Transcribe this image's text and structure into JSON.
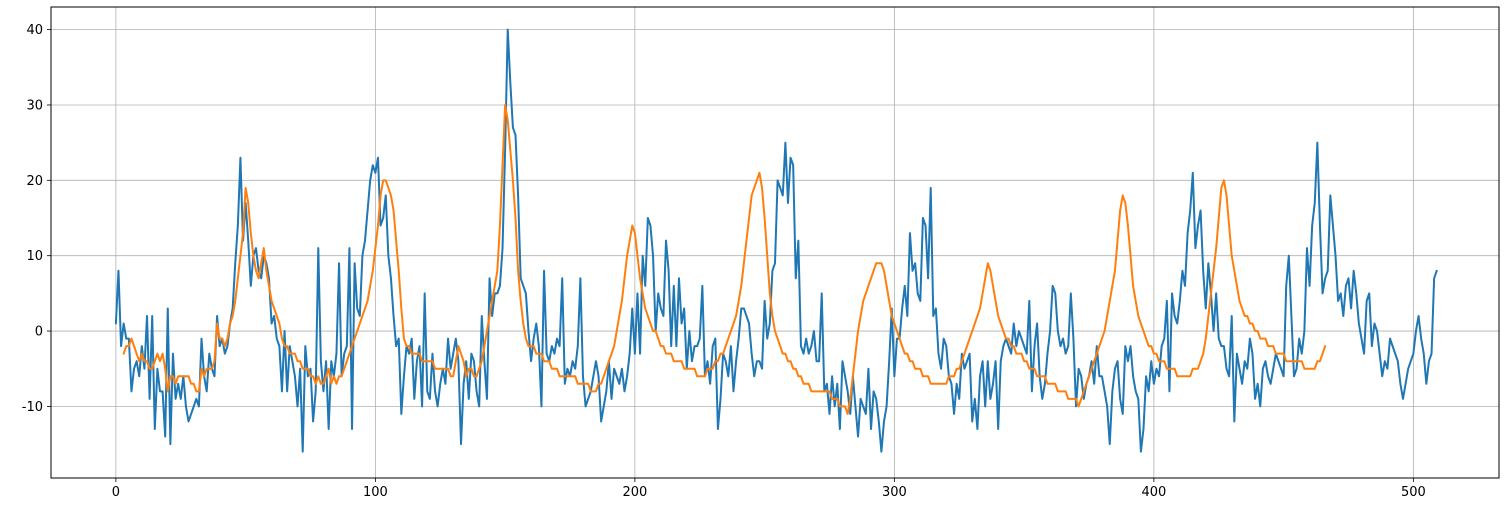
{
  "chart_data": {
    "type": "line",
    "title": "",
    "xlabel": "",
    "ylabel": "",
    "xlim": [
      -25,
      533
    ],
    "ylim": [
      -19.5,
      43
    ],
    "grid": true,
    "xticks": [
      0,
      100,
      200,
      300,
      400,
      500
    ],
    "yticks": [
      -10,
      0,
      10,
      20,
      30,
      40
    ],
    "colors": {
      "series_1": "#1f77b4",
      "series_2": "#ff7f0e"
    },
    "series": [
      {
        "color": "#1f77b4",
        "x_start": 0,
        "values": [
          1,
          8,
          -2,
          1,
          -1,
          -1,
          -8,
          -5,
          -4,
          -6,
          -2,
          -5,
          2,
          -9,
          2,
          -13,
          -5,
          -8,
          -8,
          -14,
          3,
          -15,
          -3,
          -9,
          -7,
          -9,
          -6,
          -10,
          -12,
          -11,
          -10,
          -9,
          -10,
          -1,
          -6,
          -8,
          -3,
          -5,
          -6,
          2,
          -2,
          -1,
          -3,
          -2,
          1,
          3,
          9,
          14,
          23,
          12,
          17,
          12,
          6,
          10,
          11,
          8,
          7,
          10,
          9,
          7,
          1,
          2,
          -1,
          -2,
          -8,
          0,
          -8,
          -2,
          -4,
          -6,
          -10,
          -5,
          -16,
          -2,
          -6,
          -5,
          -12,
          -8,
          11,
          -4,
          -8,
          -4,
          -13,
          -4,
          -6,
          -3,
          9,
          -6,
          -3,
          -2,
          11,
          -13,
          9,
          3,
          2,
          10,
          12,
          16,
          20,
          22,
          21,
          23,
          14,
          15,
          18,
          10,
          7,
          2,
          -2,
          -1,
          -11,
          -6,
          -2,
          -3,
          -1,
          -9,
          -4,
          -2,
          -10,
          5,
          -8,
          -9,
          -3,
          -8,
          -10,
          -7,
          -5,
          -7,
          -1,
          -5,
          -3,
          -1,
          -4,
          -15,
          -7,
          -4,
          -9,
          -3,
          -4,
          -8,
          -10,
          2,
          -4,
          -9,
          7,
          2,
          5,
          5,
          6,
          11,
          24,
          40,
          33,
          27,
          26,
          18,
          7,
          6,
          5,
          0,
          -4,
          -1,
          1,
          -2,
          -10,
          8,
          -3,
          -4,
          -2,
          -3,
          -1,
          -2,
          7,
          -7,
          -5,
          -6,
          -4,
          -5,
          -2,
          7,
          -6,
          -10,
          -9,
          -8,
          -6,
          -4,
          -6,
          -12,
          -10,
          -8,
          -4,
          -9,
          -5,
          -6,
          -7,
          -5,
          -8,
          -6,
          -3,
          3,
          -3,
          5,
          -3,
          10,
          6,
          15,
          14,
          10,
          0,
          5,
          3,
          2,
          12,
          8,
          -2,
          6,
          -2,
          7,
          1,
          3,
          -5,
          0,
          -4,
          -2,
          -2,
          -1,
          6,
          -6,
          -4,
          -7,
          -2,
          -1,
          -13,
          -9,
          -3,
          -4,
          -6,
          -2,
          -8,
          -4,
          -1,
          3,
          3,
          2,
          1,
          -3,
          -6,
          -4,
          -4,
          -5,
          4,
          -1,
          1,
          8,
          9,
          20,
          19,
          18,
          25,
          17,
          23,
          22,
          7,
          12,
          -2,
          -3,
          -1,
          -3,
          -2,
          0,
          -4,
          -4,
          5,
          -8,
          -7,
          -11,
          -6,
          -10,
          -7,
          -13,
          -4,
          -6,
          -8,
          -11,
          -6,
          -10,
          -14,
          -9,
          -10,
          -11,
          -5,
          -13,
          -8,
          -9,
          -12,
          -16,
          -12,
          -10,
          -4,
          3,
          -6,
          -1,
          -1,
          3,
          6,
          2,
          13,
          8,
          9,
          5,
          4,
          15,
          14,
          7,
          19,
          2,
          3,
          -3,
          -5,
          -1,
          -2,
          -6,
          -7,
          -11,
          -7,
          -9,
          -3,
          -5,
          -4,
          -3,
          -12,
          -9,
          -13,
          -6,
          -4,
          -10,
          -4,
          -9,
          -7,
          -4,
          -13,
          -4,
          -2,
          -1,
          -2,
          -3,
          1,
          -2,
          0,
          -1,
          -2,
          -3,
          4,
          -8,
          -2,
          1,
          -6,
          -9,
          -7,
          -3,
          0,
          6,
          5,
          0,
          -2,
          -1,
          -3,
          -2,
          5,
          -1,
          -10,
          -5,
          -6,
          -9,
          -7,
          -6,
          -4,
          -7,
          -2,
          -6,
          -6,
          -8,
          -10,
          -15,
          -8,
          -5,
          -4,
          -9,
          -11,
          -2,
          -4,
          -2,
          -6,
          -8,
          -9,
          -16,
          -13,
          -6,
          -8,
          -4,
          -7,
          -5,
          -6,
          -2,
          -1,
          4,
          -8,
          5,
          2,
          1,
          4,
          8,
          6,
          13,
          16,
          21,
          11,
          14,
          16,
          8,
          3,
          9,
          5,
          0,
          5,
          -1,
          -2,
          -2,
          -5,
          -6,
          2,
          -12,
          -3,
          -5,
          -7,
          -4,
          -5,
          -1,
          -3,
          -9,
          -7,
          -10,
          -5,
          -4,
          -6,
          -7,
          -5,
          -3,
          -4,
          -5,
          -6,
          6,
          10,
          2,
          -6,
          -5,
          -1,
          -3,
          0,
          11,
          6,
          14,
          17,
          25,
          14,
          5,
          7,
          8,
          18,
          14,
          10,
          4,
          5,
          2,
          6,
          7,
          3,
          8,
          5,
          1,
          -1,
          -3,
          4,
          5,
          -2,
          1,
          0,
          -3,
          -6,
          -4,
          -5,
          -1,
          -2,
          -3,
          -4,
          -7,
          -9,
          -7,
          -5,
          -4,
          -3,
          0,
          2,
          -1,
          -3,
          -7,
          -4,
          -3,
          7,
          8
        ]
      },
      {
        "color": "#ff7f0e",
        "x_start": 3,
        "values": [
          -3,
          -2,
          -2,
          -1,
          -2,
          -3,
          -4,
          -3,
          -4,
          -4,
          -5,
          -5,
          -4,
          -3,
          -4,
          -3,
          -5,
          -8,
          -6,
          -6,
          -7,
          -6,
          -6,
          -6,
          -6,
          -6,
          -7,
          -7,
          -8,
          -8,
          -5,
          -6,
          -5,
          -5,
          -5,
          -4,
          1,
          -1,
          -1,
          -2,
          -1,
          1,
          2,
          4,
          7,
          10,
          13,
          19,
          17,
          13,
          10,
          8,
          7,
          9,
          11,
          8,
          6,
          4,
          3,
          2,
          1,
          -1,
          -2,
          -2,
          -3,
          -3,
          -3,
          -4,
          -4,
          -5,
          -5,
          -5,
          -6,
          -6,
          -7,
          -6,
          -7,
          -7,
          -6,
          -5,
          -7,
          -6,
          -7,
          -6,
          -6,
          -5,
          -4,
          -3,
          -2,
          -1,
          0,
          1,
          2,
          3,
          4,
          6,
          8,
          11,
          14,
          18,
          20,
          20,
          19,
          18,
          16,
          12,
          8,
          3,
          -1,
          -2,
          -2,
          -3,
          -3,
          -3,
          -3,
          -4,
          -4,
          -4,
          -4,
          -4,
          -5,
          -5,
          -5,
          -5,
          -5,
          -5,
          -6,
          -6,
          -4,
          -2,
          -3,
          -4,
          -6,
          -5,
          -5,
          -6,
          -6,
          -5,
          -4,
          -2,
          0,
          2,
          4,
          6,
          8,
          14,
          22,
          30,
          28,
          24,
          20,
          15,
          8,
          4,
          1,
          -1,
          -2,
          -2,
          -2,
          -3,
          -3,
          -3,
          -4,
          -4,
          -4,
          -5,
          -5,
          -5,
          -6,
          -6,
          -6,
          -6,
          -6,
          -6,
          -6,
          -7,
          -7,
          -7,
          -7,
          -7,
          -8,
          -8,
          -8,
          -7,
          -7,
          -6,
          -5,
          -4,
          -3,
          -2,
          0,
          2,
          4,
          7,
          10,
          12,
          14,
          13,
          10,
          7,
          5,
          3,
          2,
          1,
          0,
          0,
          -1,
          -2,
          -2,
          -3,
          -3,
          -3,
          -4,
          -4,
          -4,
          -4,
          -5,
          -5,
          -5,
          -5,
          -5,
          -6,
          -6,
          -6,
          -6,
          -5,
          -5,
          -5,
          -4,
          -4,
          -3,
          -3,
          -2,
          -1,
          0,
          1,
          2,
          4,
          6,
          9,
          12,
          15,
          18,
          19,
          20,
          21,
          19,
          15,
          10,
          5,
          2,
          0,
          -1,
          -2,
          -3,
          -3,
          -4,
          -4,
          -5,
          -5,
          -6,
          -6,
          -7,
          -7,
          -7,
          -8,
          -8,
          -8,
          -8,
          -8,
          -8,
          -8,
          -8,
          -9,
          -9,
          -9,
          -10,
          -10,
          -10,
          -11,
          -9,
          -6,
          -3,
          0,
          2,
          4,
          5,
          6,
          7,
          8,
          9,
          9,
          9,
          8,
          6,
          4,
          2,
          1,
          0,
          -1,
          -2,
          -3,
          -3,
          -4,
          -4,
          -5,
          -5,
          -5,
          -6,
          -6,
          -6,
          -7,
          -7,
          -7,
          -7,
          -7,
          -7,
          -7,
          -6,
          -6,
          -6,
          -5,
          -5,
          -4,
          -3,
          -2,
          -1,
          0,
          1,
          2,
          3,
          5,
          7,
          9,
          8,
          6,
          4,
          2,
          1,
          0,
          -1,
          -1,
          -2,
          -2,
          -3,
          -3,
          -3,
          -4,
          -4,
          -5,
          -5,
          -5,
          -6,
          -6,
          -6,
          -6,
          -7,
          -7,
          -7,
          -7,
          -8,
          -8,
          -8,
          -8,
          -9,
          -9,
          -9,
          -9,
          -10,
          -9,
          -8,
          -7,
          -6,
          -5,
          -4,
          -3,
          -2,
          -1,
          0,
          2,
          4,
          6,
          8,
          12,
          16,
          18,
          17,
          14,
          10,
          6,
          4,
          2,
          1,
          0,
          -1,
          -2,
          -2,
          -3,
          -3,
          -4,
          -4,
          -4,
          -5,
          -5,
          -5,
          -5,
          -6,
          -6,
          -6,
          -6,
          -6,
          -6,
          -5,
          -5,
          -5,
          -4,
          -3,
          -1,
          2,
          5,
          8,
          11,
          15,
          19,
          20,
          18,
          14,
          10,
          8,
          6,
          4,
          3,
          2,
          2,
          1,
          1,
          0,
          0,
          -1,
          -1,
          -1,
          -2,
          -2,
          -2,
          -3,
          -3,
          -3,
          -3,
          -4,
          -4,
          -4,
          -4,
          -4,
          -4,
          -4,
          -5,
          -5,
          -5,
          -5,
          -5,
          -4,
          -4,
          -3,
          -2
        ]
      }
    ]
  }
}
